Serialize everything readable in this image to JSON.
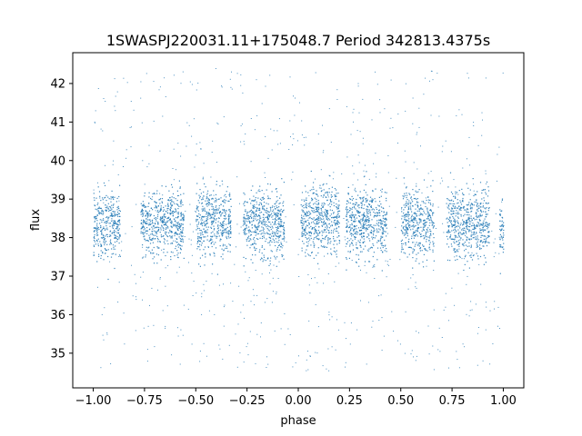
{
  "chart_data": {
    "type": "scatter",
    "title": "1SWASPJ220031.11+175048.7 Period 342813.4375s",
    "xlabel": "phase",
    "ylabel": "flux",
    "xlim": [
      -1.1,
      1.1
    ],
    "ylim": [
      34.1,
      42.8
    ],
    "xticks": [
      -1.0,
      -0.75,
      -0.5,
      -0.25,
      0.0,
      0.25,
      0.5,
      0.75,
      1.0
    ],
    "xtick_labels": [
      "−1.00",
      "−0.75",
      "−0.50",
      "−0.25",
      "0.00",
      "0.25",
      "0.50",
      "0.75",
      "1.00"
    ],
    "yticks": [
      35,
      36,
      37,
      38,
      39,
      40,
      41,
      42
    ],
    "ytick_labels": [
      "35",
      "36",
      "37",
      "38",
      "39",
      "40",
      "41",
      "42"
    ],
    "grid": false,
    "legend": "none",
    "marker_color": "#1f77b4",
    "series": [
      {
        "x_range": [
          -1.0,
          1.0
        ],
        "clusters": [
          {
            "x_range": [
              -1.0,
              -0.87
            ],
            "y_center": 38.35,
            "y_spread": [
              36.7,
              40.1
            ]
          },
          {
            "x_range": [
              -0.77,
              -0.56
            ],
            "y_center": 38.4,
            "y_spread": [
              36.9,
              39.9
            ]
          },
          {
            "x_range": [
              -0.5,
              -0.33
            ],
            "y_center": 38.45,
            "y_spread": [
              36.8,
              40.0
            ]
          },
          {
            "x_range": [
              -0.27,
              -0.07
            ],
            "y_center": 38.4,
            "y_spread": [
              36.8,
              40.0
            ]
          },
          {
            "x_range": [
              0.01,
              0.2
            ],
            "y_center": 38.5,
            "y_spread": [
              36.9,
              40.1
            ]
          },
          {
            "x_range": [
              0.23,
              0.43
            ],
            "y_center": 38.4,
            "y_spread": [
              36.9,
              40.0
            ]
          },
          {
            "x_range": [
              0.5,
              0.66
            ],
            "y_center": 38.4,
            "y_spread": [
              36.8,
              40.0
            ]
          },
          {
            "x_range": [
              0.72,
              0.93
            ],
            "y_center": 38.4,
            "y_spread": [
              36.8,
              40.1
            ]
          },
          {
            "x_range": [
              0.98,
              1.0
            ],
            "y_center": 38.2,
            "y_spread": [
              36.9,
              39.5
            ]
          }
        ],
        "y_outlier_range": [
          34.5,
          42.4
        ]
      }
    ]
  }
}
